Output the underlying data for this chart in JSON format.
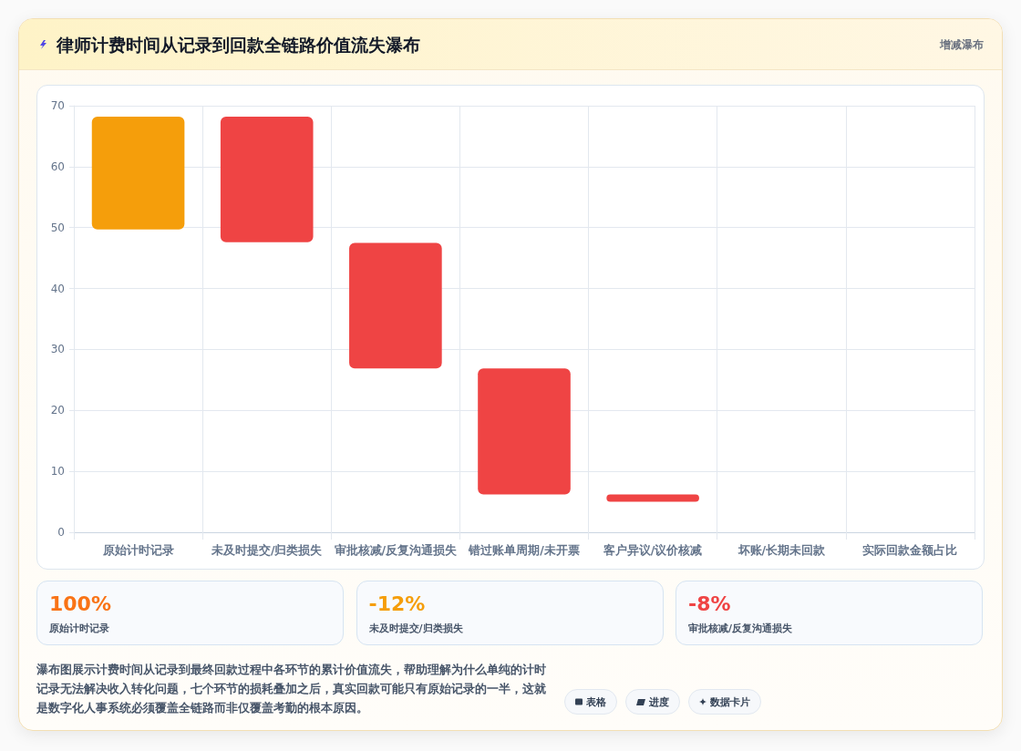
{
  "chart_data": [
    {
      "type": "bar",
      "title": "律师计费时间从记录到回款全链路价值流失瀑布",
      "subtitle": "增减瀑布",
      "categories": [
        "原始计时记录",
        "未及时提交/归类损失",
        "审批核减/反复沟通损失",
        "错过账单周期/未开票",
        "客户异议/议价核减",
        "坏账/长期未回款",
        "实际回款金额占比"
      ],
      "base": [
        49.7,
        68.2,
        47.5,
        26.9,
        6.2,
        null,
        null
      ],
      "values": [
        18.5,
        -20.6,
        -20.6,
        -20.7,
        -1.2,
        null,
        null
      ],
      "colors": [
        "#f59e0b",
        "#ef4444",
        "#ef4444",
        "#ef4444",
        "#ef4444",
        null,
        null
      ],
      "ylim": [
        0,
        70
      ],
      "yticks": [
        0,
        10,
        20,
        30,
        40,
        50,
        60,
        70
      ],
      "grid": true,
      "annotations": [
        "瀑布图展示计费时间从记录到最终回款过程中各环节的累计价值流失，帮助理解为什么单纯的计时记录无法解决收入转化问题，七个环节的损耗叠加之后，真实回款可能只有原始记录的一半，这就是数字化人事系统必须覆盖全链路而非仅覆盖考勤的根本原因。",
        "表格",
        "进度",
        "数据卡片"
      ]
    },
    {
      "type": "other",
      "annotations": [
        "100%",
        "原始计时记录"
      ]
    },
    {
      "type": "other",
      "annotations": [
        "-12%",
        "未及时提交/归类损失"
      ]
    },
    {
      "type": "other",
      "annotations": [
        "-8%",
        "审批核减/反复沟通损失"
      ]
    }
  ]
}
